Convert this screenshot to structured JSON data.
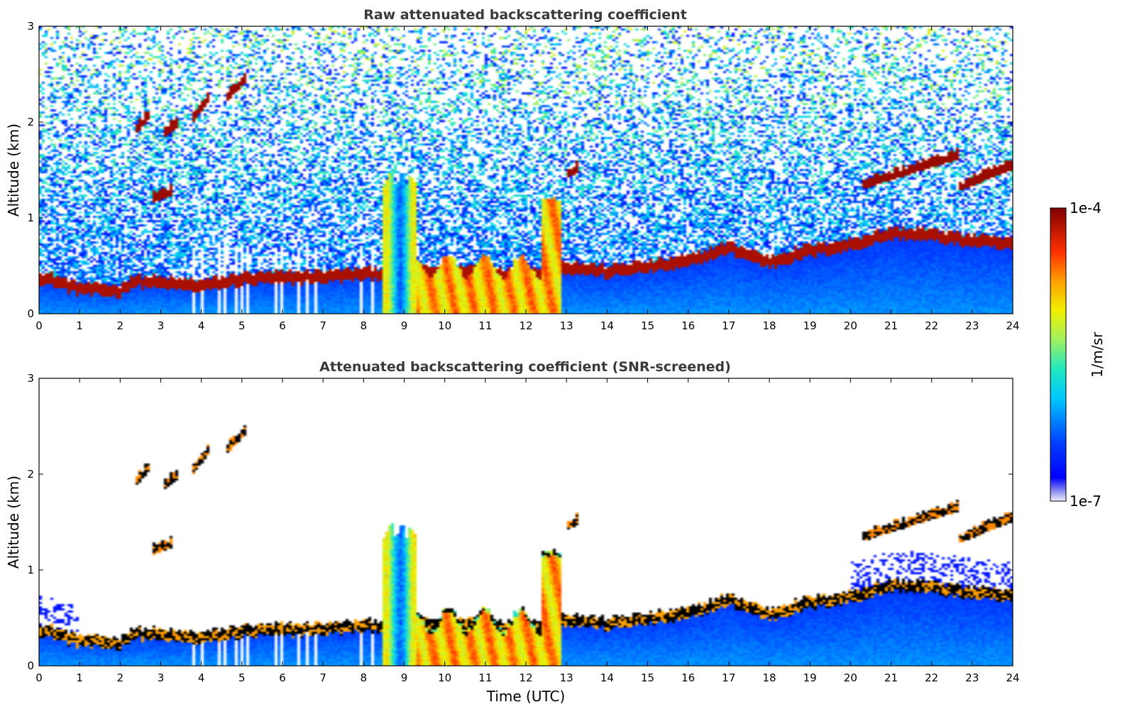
{
  "chart_data": [
    {
      "type": "heatmap",
      "title": "Raw attenuated backscattering coefficient",
      "xlabel": "",
      "ylabel": "Altitude (km)",
      "xlim": [
        0,
        24
      ],
      "ylim": [
        0,
        3
      ],
      "xticks": [
        "0",
        "1",
        "2",
        "3",
        "4",
        "5",
        "6",
        "7",
        "8",
        "9",
        "10",
        "11",
        "12",
        "13",
        "14",
        "15",
        "16",
        "17",
        "18",
        "19",
        "20",
        "21",
        "22",
        "23",
        "24"
      ],
      "yticks": [
        "0",
        "1",
        "2",
        "3"
      ],
      "screened": false
    },
    {
      "type": "heatmap",
      "title": "Attenuated backscattering coefficient (SNR-screened)",
      "xlabel": "Time (UTC)",
      "ylabel": "Altitude (km)",
      "xlim": [
        0,
        24
      ],
      "ylim": [
        0,
        3
      ],
      "xticks": [
        "0",
        "1",
        "2",
        "3",
        "4",
        "5",
        "6",
        "7",
        "8",
        "9",
        "10",
        "11",
        "12",
        "13",
        "14",
        "15",
        "16",
        "17",
        "18",
        "19",
        "20",
        "21",
        "22",
        "23",
        "24"
      ],
      "yticks": [
        "0",
        "1",
        "2",
        "3"
      ],
      "screened": true
    }
  ],
  "colorbar": {
    "label": "1/m/sr",
    "max_label": "1e-4",
    "min_label": "1e-7",
    "colormap": "jet",
    "scale": "log"
  },
  "features": {
    "boundary_layer_top_km": [
      [
        0,
        0.45
      ],
      [
        1,
        0.32
      ],
      [
        2,
        0.3
      ],
      [
        2.3,
        0.4
      ],
      [
        4,
        0.35
      ],
      [
        5,
        0.42
      ],
      [
        7,
        0.45
      ],
      [
        9,
        0.5
      ],
      [
        10,
        0.5
      ],
      [
        11,
        0.5
      ],
      [
        12,
        0.45
      ],
      [
        13,
        0.55
      ],
      [
        14,
        0.5
      ],
      [
        15,
        0.55
      ],
      [
        16,
        0.6
      ],
      [
        17,
        0.75
      ],
      [
        18,
        0.6
      ],
      [
        19,
        0.72
      ],
      [
        20,
        0.78
      ],
      [
        21,
        0.9
      ],
      [
        22,
        0.88
      ],
      [
        23,
        0.82
      ],
      [
        24,
        0.78
      ]
    ],
    "elevated_layers": [
      {
        "x0": 2.35,
        "x1": 2.7,
        "y0": 1.85,
        "y1": 2.1
      },
      {
        "x0": 3.1,
        "x1": 3.45,
        "y0": 1.85,
        "y1": 2.0
      },
      {
        "x0": 3.8,
        "x1": 4.2,
        "y0": 2.0,
        "y1": 2.3
      },
      {
        "x0": 4.6,
        "x1": 5.1,
        "y0": 2.2,
        "y1": 2.5
      },
      {
        "x0": 2.8,
        "x1": 3.3,
        "y0": 1.15,
        "y1": 1.28
      },
      {
        "x0": 13.0,
        "x1": 13.3,
        "y0": 1.4,
        "y1": 1.52
      },
      {
        "x0": 20.3,
        "x1": 22.7,
        "y0": 1.3,
        "y1": 1.75
      },
      {
        "x0": 22.7,
        "x1": 24.0,
        "y0": 1.28,
        "y1": 1.6
      }
    ],
    "convective_period_hours": [
      9.3,
      12.9
    ]
  }
}
